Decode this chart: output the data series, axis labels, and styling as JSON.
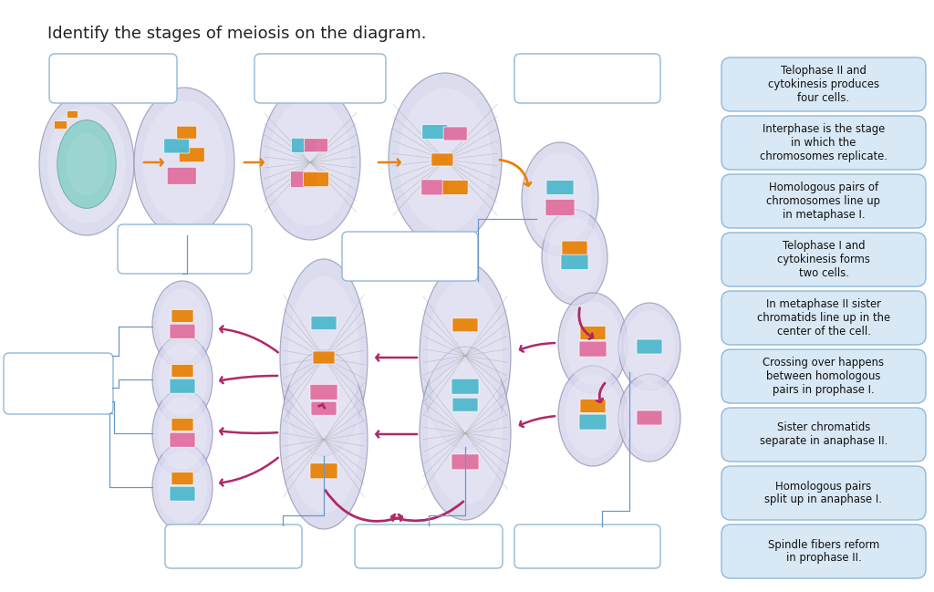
{
  "title": "Identify the stages of meiosis on the diagram.",
  "bg_color": "#ffffff",
  "box_edgecolor": "#90b8d8",
  "box_facecolor": "#ffffff",
  "answer_facecolor": "#d8e8f5",
  "answer_edgecolor": "#90b8d8",
  "answer_texts": [
    "Telophase II and\ncytokinesis produces\nfour cells.",
    "Interphase is the stage\nin which the\nchromosomes replicate.",
    "Homologous pairs of\nchromosomes line up\nin metaphase I.",
    "Telophase I and\ncytokinesis forms\ntwo cells.",
    "In metaphase II sister\nchromatids line up in the\ncenter of the cell.",
    "Crossing over happens\nbetween homologous\npairs in prophase I.",
    "Sister chromatids\nseparate in anaphase II.",
    "Homologous pairs\nsplit up in anaphase I.",
    "Spindle fibers reform\nin prophase II."
  ],
  "orange": "#e8820a",
  "pink": "#b02868",
  "teal": "#50b8cc",
  "magenta": "#e070a0",
  "cell_fc": "#d0d0e8",
  "cell_ec": "#a0a0c0",
  "cell_inner": "#e8e8f8",
  "nuc_color": "#88d0c8",
  "blue_line": "#6898c8"
}
